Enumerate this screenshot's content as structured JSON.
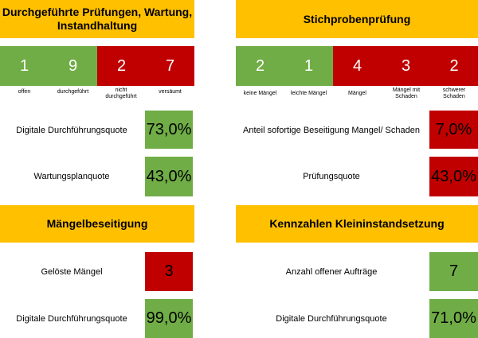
{
  "colors": {
    "header": "#ffc000",
    "good": "#70ad47",
    "bad": "#c00000"
  },
  "left_top": {
    "title": "Durchgeführte Prüfungen, Wartung, Instandhaltung",
    "cells": [
      {
        "value": "1",
        "label": "offen",
        "status": "good"
      },
      {
        "value": "9",
        "label": "durchgeführt",
        "status": "good"
      },
      {
        "value": "2",
        "label": "nicht durchgeführt",
        "status": "bad"
      },
      {
        "value": "7",
        "label": "versäumt",
        "status": "bad"
      }
    ],
    "kpis": [
      {
        "label": "Digitale Durchführungsquote",
        "value": "73,0%",
        "status": "good"
      },
      {
        "label": "Wartungsplanquote",
        "value": "43,0%",
        "status": "good"
      }
    ]
  },
  "right_top": {
    "title": "Stichprobenprüfung",
    "cells": [
      {
        "value": "2",
        "label": "keine Mängel",
        "status": "good"
      },
      {
        "value": "1",
        "label": "leichte Mängel",
        "status": "good"
      },
      {
        "value": "4",
        "label": "Mängel",
        "status": "bad"
      },
      {
        "value": "3",
        "label": "Mängel mit Schaden",
        "status": "bad"
      },
      {
        "value": "2",
        "label": "schwerer Schaden",
        "status": "bad"
      }
    ],
    "kpis": [
      {
        "label": "Anteil sofortige Beseitigung Mangel/ Schaden",
        "value": "7,0%",
        "status": "bad"
      },
      {
        "label": "Prüfungsquote",
        "value": "43,0%",
        "status": "bad"
      }
    ]
  },
  "left_bottom": {
    "title": "Mängelbeseitigung",
    "kpis": [
      {
        "label": "Gelöste Mängel",
        "value": "3",
        "status": "bad"
      },
      {
        "label": "Digitale Durchführungsquote",
        "value": "99,0%",
        "status": "good"
      }
    ]
  },
  "right_bottom": {
    "title": "Kennzahlen Kleininstandsetzung",
    "kpis": [
      {
        "label": "Anzahl offener Aufträge",
        "value": "7",
        "status": "good"
      },
      {
        "label": "Digitale Durchführungsquote",
        "value": "71,0%",
        "status": "good"
      }
    ]
  }
}
